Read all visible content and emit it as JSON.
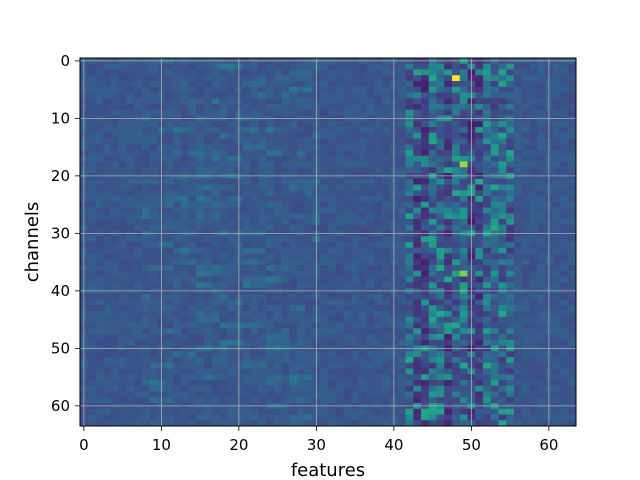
{
  "chart_data": {
    "type": "heatmap",
    "title": "",
    "xlabel": "features",
    "ylabel": "channels",
    "x_range": [
      -0.5,
      63.5
    ],
    "y_range": [
      -0.5,
      63.5
    ],
    "y_inverted": true,
    "x_ticks": [
      0,
      10,
      20,
      30,
      40,
      50,
      60
    ],
    "y_ticks": [
      0,
      10,
      20,
      30,
      40,
      50,
      60
    ],
    "grid": true,
    "colormap": "viridis",
    "rows": 64,
    "cols": 64,
    "bright_cells": [
      {
        "channel": 3,
        "feature": 48,
        "value": 1.0
      },
      {
        "channel": 18,
        "feature": 49,
        "value": 0.85
      },
      {
        "channel": 37,
        "feature": 49,
        "value": 0.8
      },
      {
        "channel": 2,
        "feature": 47,
        "value": 0.55
      },
      {
        "channel": 5,
        "feature": 48,
        "value": 0.55
      },
      {
        "channel": 12,
        "feature": 51,
        "value": 0.55
      },
      {
        "channel": 16,
        "feature": 53,
        "value": 0.55
      },
      {
        "channel": 21,
        "feature": 51,
        "value": 0.6
      },
      {
        "channel": 28,
        "feature": 53,
        "value": 0.55
      },
      {
        "channel": 33,
        "feature": 51,
        "value": 0.5
      },
      {
        "channel": 38,
        "feature": 47,
        "value": 0.6
      },
      {
        "channel": 44,
        "feature": 46,
        "value": 0.6
      },
      {
        "channel": 44,
        "feature": 49,
        "value": 0.55
      },
      {
        "channel": 53,
        "feature": 52,
        "value": 0.6
      },
      {
        "channel": 56,
        "feature": 53,
        "value": 0.55
      },
      {
        "channel": 62,
        "feature": 45,
        "value": 0.5
      },
      {
        "channel": 62,
        "feature": 49,
        "value": 0.5
      }
    ]
  }
}
